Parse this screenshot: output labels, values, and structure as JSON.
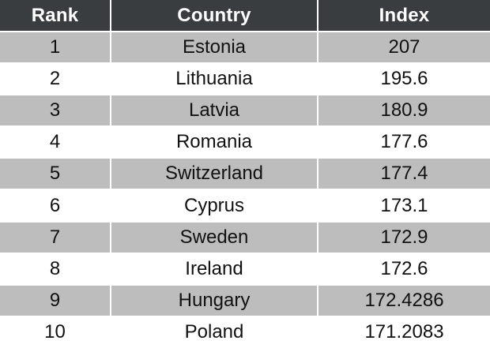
{
  "chart_data": {
    "type": "table",
    "columns": [
      "Rank",
      "Country",
      "Index"
    ],
    "rows": [
      {
        "rank": "1",
        "country": "Estonia",
        "index": "207"
      },
      {
        "rank": "2",
        "country": "Lithuania",
        "index": "195.6"
      },
      {
        "rank": "3",
        "country": "Latvia",
        "index": "180.9"
      },
      {
        "rank": "4",
        "country": "Romania",
        "index": "177.6"
      },
      {
        "rank": "5",
        "country": "Switzerland",
        "index": "177.4"
      },
      {
        "rank": "6",
        "country": "Cyprus",
        "index": "173.1"
      },
      {
        "rank": "7",
        "country": "Sweden",
        "index": "172.9"
      },
      {
        "rank": "8",
        "country": "Ireland",
        "index": "172.6"
      },
      {
        "rank": "9",
        "country": "Hungary",
        "index": "172.4286"
      },
      {
        "rank": "10",
        "country": "Poland",
        "index": "171.2083"
      }
    ]
  },
  "colors": {
    "header_bg": "#3a3d40",
    "header_text": "#ffffff",
    "band_bg": "#bdbdbd",
    "row_bg": "#ffffff"
  }
}
